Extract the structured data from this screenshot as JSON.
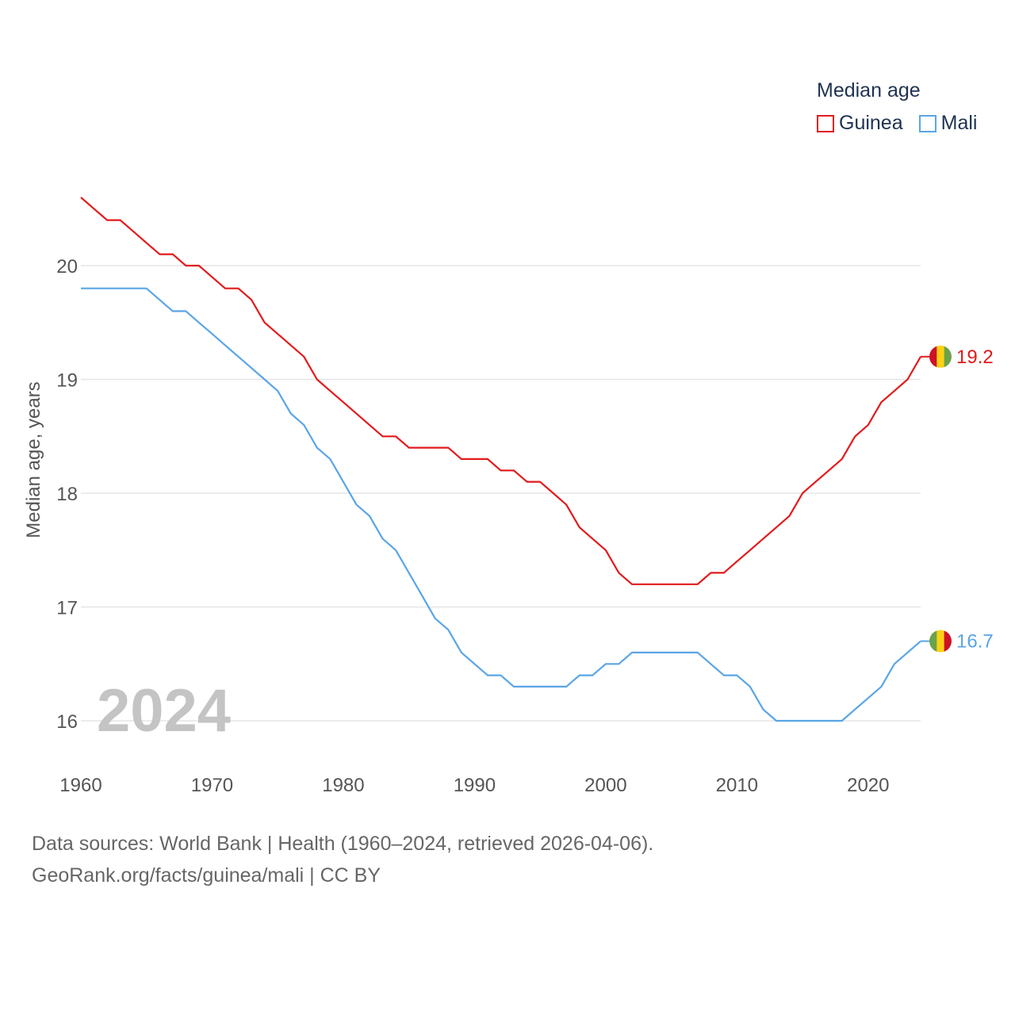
{
  "chart_data": {
    "type": "line",
    "ylabel": "Median age, years",
    "xlabel": "",
    "year_watermark": "2024",
    "x_ticks": [
      "1960",
      "1970",
      "1980",
      "1990",
      "2000",
      "2010",
      "2020"
    ],
    "y_ticks": [
      "16",
      "17",
      "18",
      "19",
      "20"
    ],
    "xlim": [
      1960,
      2024
    ],
    "ylim": [
      15.6,
      20.8
    ],
    "grid": true,
    "legend": {
      "title": "Median age",
      "placement": "top-right"
    },
    "x": [
      1960,
      1961,
      1962,
      1963,
      1964,
      1965,
      1966,
      1967,
      1968,
      1969,
      1970,
      1971,
      1972,
      1973,
      1974,
      1975,
      1976,
      1977,
      1978,
      1979,
      1980,
      1981,
      1982,
      1983,
      1984,
      1985,
      1986,
      1987,
      1988,
      1989,
      1990,
      1991,
      1992,
      1993,
      1994,
      1995,
      1996,
      1997,
      1998,
      1999,
      2000,
      2001,
      2002,
      2003,
      2004,
      2005,
      2006,
      2007,
      2008,
      2009,
      2010,
      2011,
      2012,
      2013,
      2014,
      2015,
      2016,
      2017,
      2018,
      2019,
      2020,
      2021,
      2022,
      2023,
      2024
    ],
    "series": [
      {
        "name": "Guinea",
        "color": "#e31a1c",
        "end_label": "19.2",
        "values": [
          20.6,
          20.5,
          20.4,
          20.4,
          20.3,
          20.2,
          20.1,
          20.1,
          20.0,
          20.0,
          19.9,
          19.8,
          19.8,
          19.7,
          19.5,
          19.4,
          19.3,
          19.2,
          19.0,
          18.9,
          18.8,
          18.7,
          18.6,
          18.5,
          18.5,
          18.4,
          18.4,
          18.4,
          18.4,
          18.3,
          18.3,
          18.3,
          18.2,
          18.2,
          18.1,
          18.1,
          18.0,
          17.9,
          17.7,
          17.6,
          17.5,
          17.3,
          17.2,
          17.2,
          17.2,
          17.2,
          17.2,
          17.2,
          17.3,
          17.3,
          17.4,
          17.5,
          17.6,
          17.7,
          17.8,
          18.0,
          18.1,
          18.2,
          18.3,
          18.5,
          18.6,
          18.8,
          18.9,
          19.0,
          19.2
        ]
      },
      {
        "name": "Mali",
        "color": "#5aa5e6",
        "end_label": "16.7",
        "values": [
          19.8,
          19.8,
          19.8,
          19.8,
          19.8,
          19.8,
          19.7,
          19.6,
          19.6,
          19.5,
          19.4,
          19.3,
          19.2,
          19.1,
          19.0,
          18.9,
          18.7,
          18.6,
          18.4,
          18.3,
          18.1,
          17.9,
          17.8,
          17.6,
          17.5,
          17.3,
          17.1,
          16.9,
          16.8,
          16.6,
          16.5,
          16.4,
          16.4,
          16.3,
          16.3,
          16.3,
          16.3,
          16.3,
          16.4,
          16.4,
          16.5,
          16.5,
          16.6,
          16.6,
          16.6,
          16.6,
          16.6,
          16.6,
          16.5,
          16.4,
          16.4,
          16.3,
          16.1,
          16.0,
          16.0,
          16.0,
          16.0,
          16.0,
          16.0,
          16.1,
          16.2,
          16.3,
          16.5,
          16.6,
          16.7
        ]
      }
    ]
  },
  "footer": {
    "sources": "Data sources: World Bank | Health (1960–2024, retrieved 2026-04-06).",
    "attribution": "GeoRank.org/facts/guinea/mali | CC BY"
  }
}
